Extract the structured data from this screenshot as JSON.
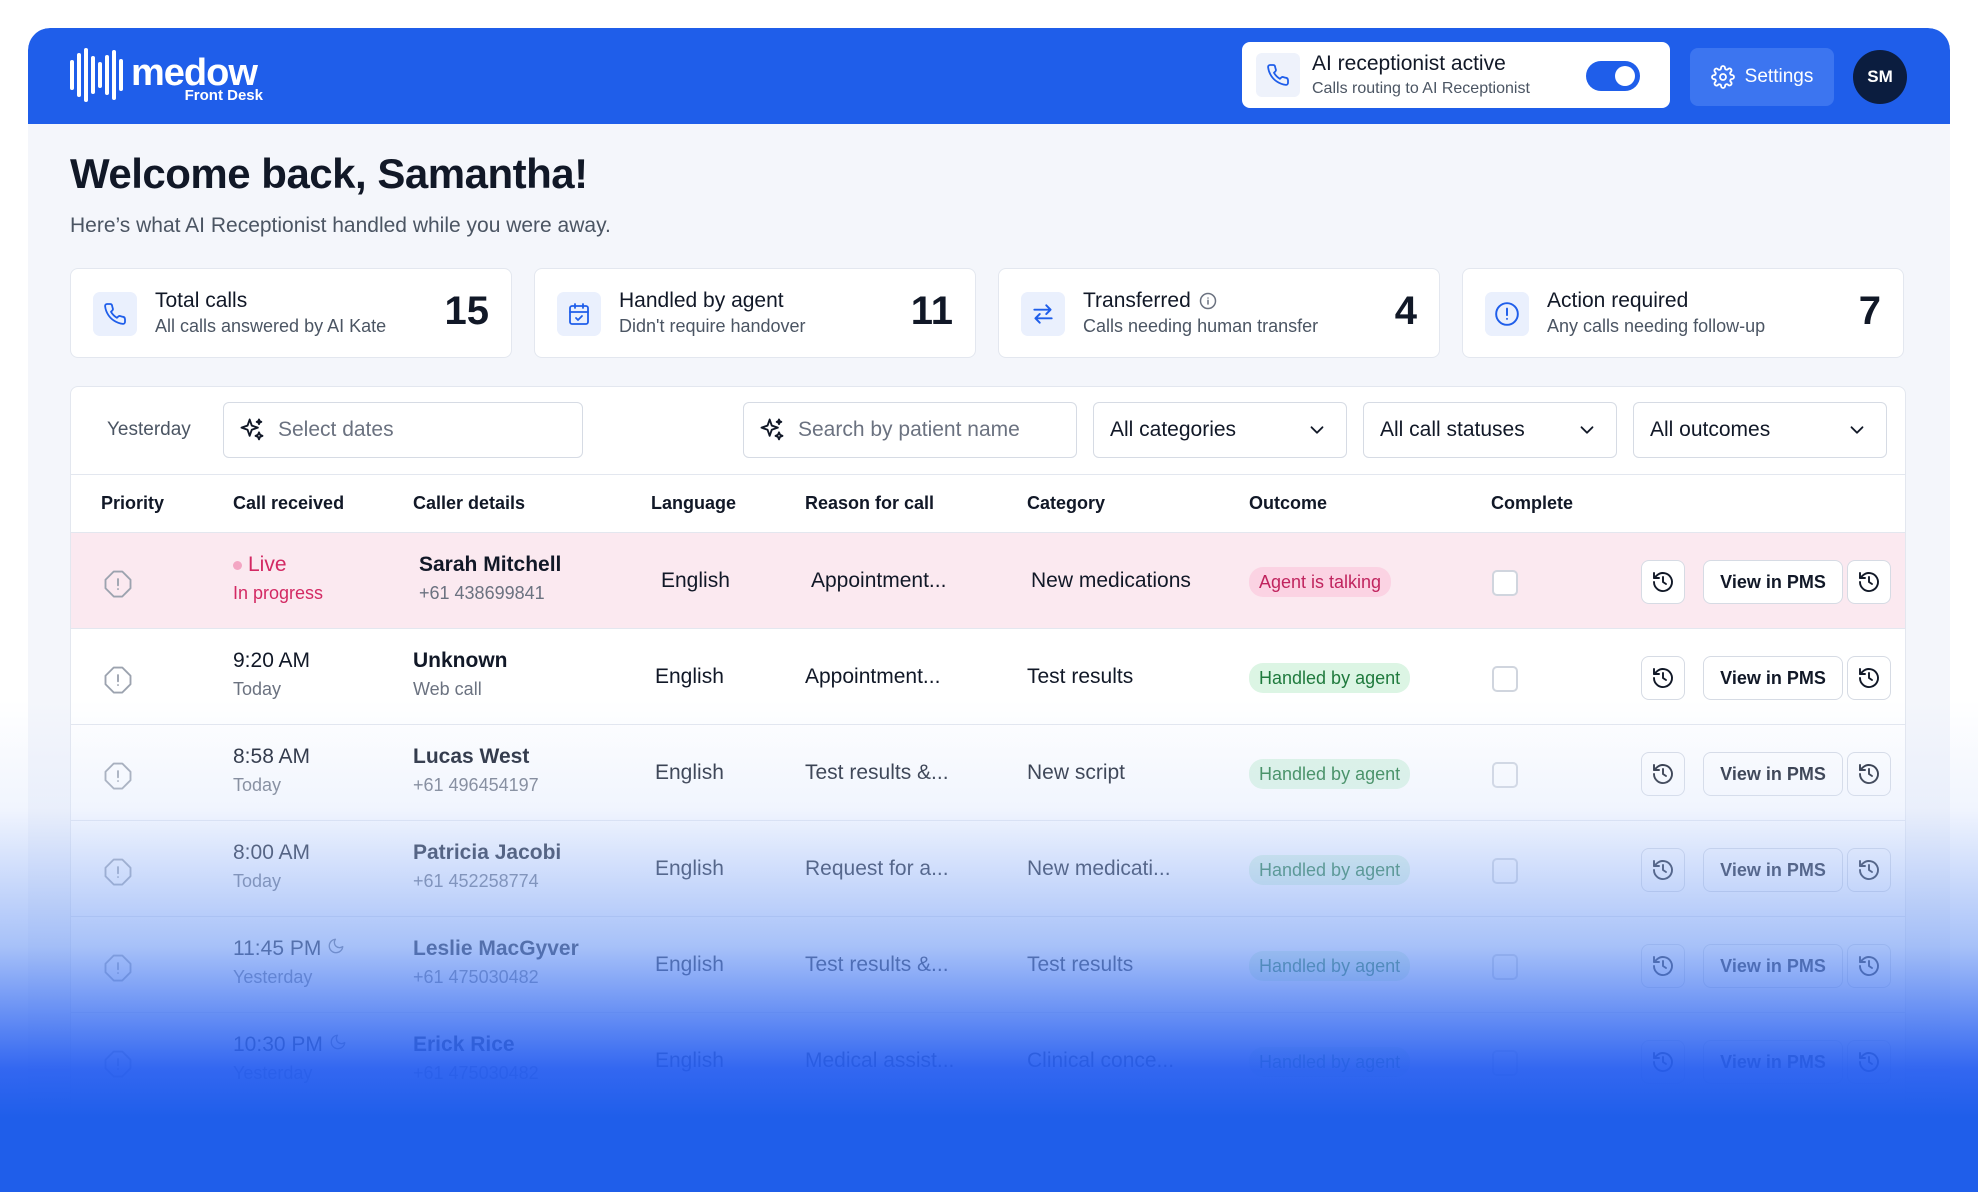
{
  "brand": {
    "name": "medow",
    "product": "Front Desk"
  },
  "ai_status": {
    "title": "AI receptionist active",
    "subtitle": "Calls routing to AI Receptionist",
    "enabled": true
  },
  "header": {
    "settings_label": "Settings",
    "avatar_initials": "SM"
  },
  "welcome": {
    "title": "Welcome back, Samantha!",
    "subtitle": "Here’s what AI Receptionist handled while you were away."
  },
  "stats": [
    {
      "title": "Total calls",
      "desc": "All calls answered by AI Kate",
      "value": "15",
      "icon": "phone-icon"
    },
    {
      "title": "Handled by agent",
      "desc": "Didn't require handover",
      "value": "11",
      "icon": "calendar-check-icon"
    },
    {
      "title": "Transferred",
      "desc": "Calls needing human transfer",
      "value": "4",
      "icon": "transfer-icon"
    },
    {
      "title": "Action required",
      "desc": "Any calls needing follow-up",
      "value": "7",
      "icon": "alert-circle-icon"
    }
  ],
  "filters": {
    "quick_range": "Yesterday",
    "date_placeholder": "Select dates",
    "search_placeholder": "Search by patient name",
    "category": "All categories",
    "call_status": "All call statuses",
    "outcome": "All outcomes"
  },
  "table": {
    "headers": [
      "Priority",
      "Call received",
      "Caller details",
      "Language",
      "Reason for call",
      "Category",
      "Outcome",
      "Complete"
    ],
    "view_label": "View in PMS",
    "rows": [
      {
        "time": "Live",
        "day": "In progress",
        "name": "Sarah Mitchell",
        "contact": "+61 438699841",
        "language": "English",
        "reason": "Appointment...",
        "category": "New medications",
        "outcome": "Agent is talking"
      },
      {
        "time": "9:20 AM",
        "day": "Today",
        "name": "Unknown",
        "contact": "Web call",
        "language": "English",
        "reason": "Appointment...",
        "category": "Test results",
        "outcome": "Handled by agent"
      },
      {
        "time": "8:58 AM",
        "day": "Today",
        "name": "Lucas West",
        "contact": "+61 496454197",
        "language": "English",
        "reason": "Test results &...",
        "category": "New script",
        "outcome": "Handled by agent"
      },
      {
        "time": "8:00 AM",
        "day": "Today",
        "name": "Patricia Jacobi",
        "contact": "+61 452258774",
        "language": "English",
        "reason": "Request for a...",
        "category": "New medicati...",
        "outcome": "Handled by agent"
      },
      {
        "time": "11:45 PM",
        "day": "Yesterday",
        "name": "Leslie MacGyver",
        "contact": "+61 475030482",
        "language": "English",
        "reason": "Test results &...",
        "category": "Test results",
        "outcome": "Handled by agent"
      },
      {
        "time": "10:30 PM",
        "day": "Yesterday",
        "name": "Erick Rice",
        "contact": "+61 475030482",
        "language": "English",
        "reason": "Medical assist...",
        "category": "Clinical conce...",
        "outcome": "Handled by agent"
      }
    ]
  },
  "colors": {
    "brand": "#1f5eea",
    "live": "#d32963",
    "success": "#1f7a3d"
  }
}
